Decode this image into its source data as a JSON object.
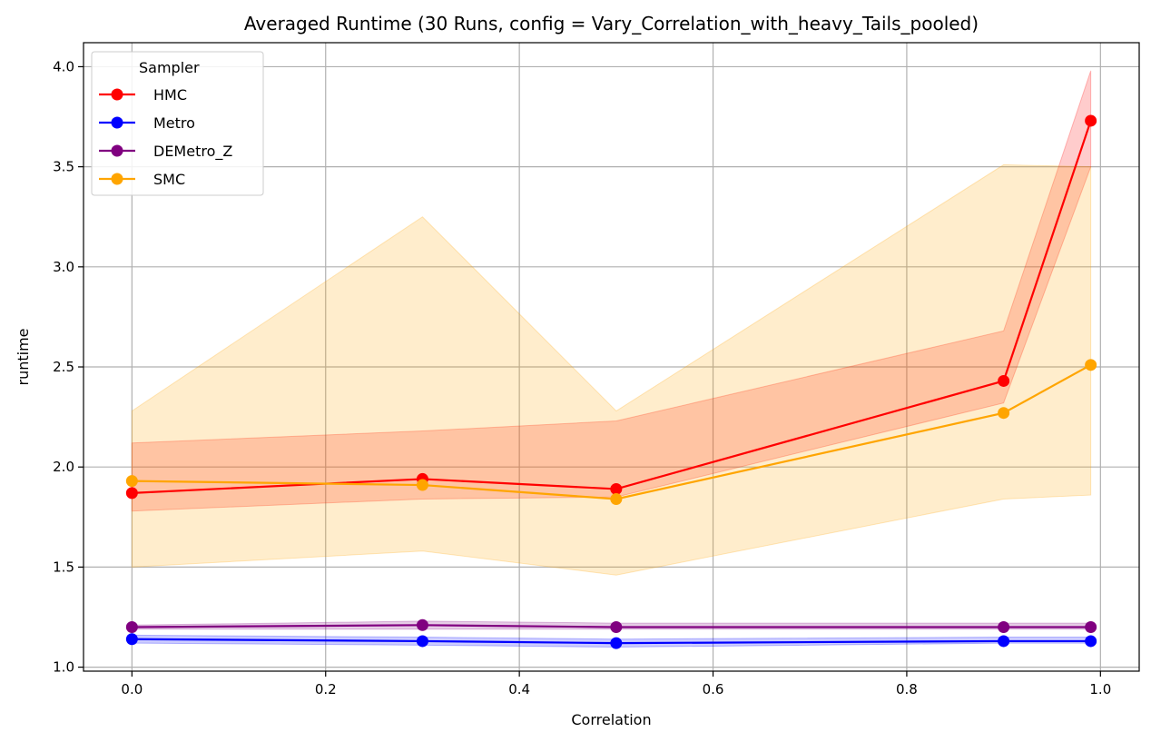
{
  "chart_data": {
    "type": "line",
    "title": "Averaged Runtime (30 Runs, config = Vary_Correlation_with_heavy_Tails_pooled)",
    "xlabel": "Correlation",
    "ylabel": "runtime",
    "xlim": [
      -0.05,
      1.04
    ],
    "ylim": [
      0.98,
      4.12
    ],
    "x_ticks": [
      0.0,
      0.2,
      0.4,
      0.6,
      0.8,
      1.0
    ],
    "x_tick_labels": [
      "0.0",
      "0.2",
      "0.4",
      "0.6",
      "0.8",
      "1.0"
    ],
    "y_ticks": [
      1.0,
      1.5,
      2.0,
      2.5,
      3.0,
      3.5,
      4.0
    ],
    "y_tick_labels": [
      "1.0",
      "1.5",
      "2.0",
      "2.5",
      "3.0",
      "3.5",
      "4.0"
    ],
    "grid": true,
    "legend": {
      "title": "Sampler",
      "placement": "top-left"
    },
    "x": [
      0.0,
      0.3,
      0.5,
      0.9,
      0.99
    ],
    "series": [
      {
        "name": "HMC",
        "color": "#ff0000",
        "values": [
          1.87,
          1.94,
          1.89,
          2.43,
          3.73
        ],
        "band_lower": [
          1.78,
          1.84,
          1.85,
          2.32,
          3.5
        ],
        "band_upper": [
          2.12,
          2.18,
          2.23,
          2.68,
          3.98
        ]
      },
      {
        "name": "Metro",
        "color": "#0000ff",
        "values": [
          1.14,
          1.13,
          1.12,
          1.13,
          1.13
        ],
        "band_lower": [
          1.12,
          1.11,
          1.1,
          1.12,
          1.12
        ],
        "band_upper": [
          1.16,
          1.15,
          1.14,
          1.15,
          1.15
        ]
      },
      {
        "name": "DEMetro_Z",
        "color": "#800080",
        "values": [
          1.2,
          1.21,
          1.2,
          1.2,
          1.2
        ],
        "band_lower": [
          1.19,
          1.19,
          1.19,
          1.19,
          1.19
        ],
        "band_upper": [
          1.21,
          1.23,
          1.22,
          1.22,
          1.22
        ]
      },
      {
        "name": "SMC",
        "color": "#ffa500",
        "values": [
          1.93,
          1.91,
          1.84,
          2.27,
          2.51
        ],
        "band_lower": [
          1.5,
          1.58,
          1.46,
          1.84,
          1.86
        ],
        "band_upper": [
          2.28,
          3.25,
          2.28,
          3.51,
          3.5
        ]
      }
    ]
  }
}
